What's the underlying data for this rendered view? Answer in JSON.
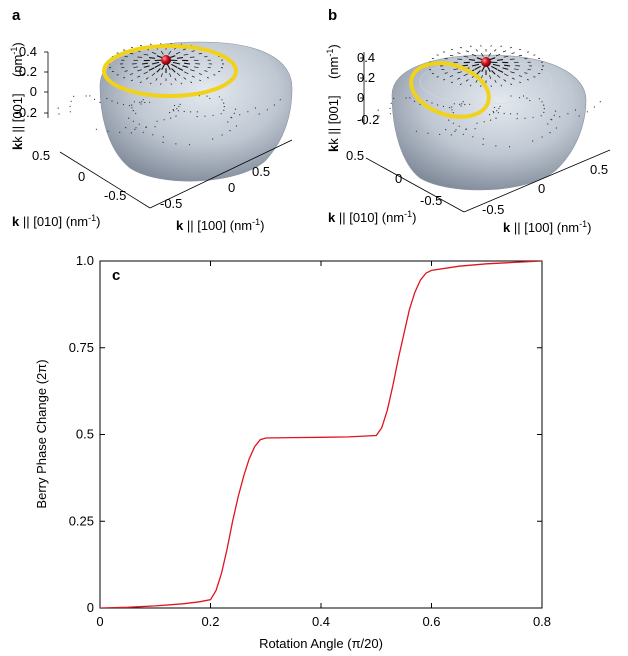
{
  "panels": {
    "a": {
      "letter": "a",
      "z_ticks": [
        "0.4",
        "0.2",
        "0",
        "-0.2"
      ],
      "y_ticks": [
        "0.5",
        "0",
        "-0.5"
      ],
      "x_ticks": [
        "-0.5",
        "0",
        "0.5"
      ],
      "z_label_prefix": "k || [001]",
      "z_label_unit": "(nm",
      "y_label_prefix": "k",
      "y_label_rest": " || [010]  (nm",
      "x_label_prefix": "k",
      "x_label_rest": " || [100]  (nm",
      "unit_sup": "-1",
      "unit_close": ")"
    },
    "b": {
      "letter": "b",
      "z_ticks": [
        "0.4",
        "0.2",
        "0",
        "-0.2"
      ],
      "y_ticks": [
        "0.5",
        "0",
        "-0.5"
      ],
      "x_ticks": [
        "-0.5",
        "0",
        "0.5"
      ],
      "z_label_prefix": "k || [001]",
      "z_label_unit": "(nm",
      "y_label_prefix": "k",
      "y_label_rest": " || [010]  (nm",
      "x_label_prefix": "k",
      "x_label_rest": " || [100]  (nm",
      "unit_sup": "-1",
      "unit_close": ")"
    }
  },
  "colors": {
    "surface": "#b9c1cc",
    "loop": "#f0d21a",
    "sphere": "#c8141e",
    "curve": "#e0141e",
    "arrows": "#111111"
  },
  "chart_data": {
    "type": "line",
    "panel_letter": "c",
    "xlabel": "Rotation Angle  (π/20)",
    "ylabel": "Berry Phase Change  (2π)",
    "xlim": [
      0,
      0.8
    ],
    "ylim": [
      0,
      1.0
    ],
    "x_tick_values": [
      0,
      0.2,
      0.4,
      0.6,
      0.8
    ],
    "x_tick_labels": [
      "0",
      "0.2",
      "0.4",
      "0.6",
      "0.8"
    ],
    "y_tick_values": [
      0,
      0.25,
      0.5,
      0.75,
      1.0
    ],
    "y_tick_labels": [
      "0",
      "0.25",
      "0.5",
      "0.75",
      "1.0"
    ],
    "grid": false,
    "series": [
      {
        "color": "#e0141e",
        "x": [
          0,
          0.05,
          0.1,
          0.15,
          0.18,
          0.2,
          0.21,
          0.22,
          0.23,
          0.24,
          0.25,
          0.26,
          0.27,
          0.28,
          0.29,
          0.3,
          0.35,
          0.4,
          0.45,
          0.5,
          0.51,
          0.52,
          0.53,
          0.54,
          0.55,
          0.56,
          0.57,
          0.58,
          0.59,
          0.6,
          0.65,
          0.7,
          0.75,
          0.8
        ],
        "y": [
          0,
          0.002,
          0.006,
          0.012,
          0.018,
          0.024,
          0.05,
          0.1,
          0.17,
          0.25,
          0.32,
          0.38,
          0.43,
          0.465,
          0.485,
          0.49,
          0.491,
          0.492,
          0.493,
          0.497,
          0.52,
          0.57,
          0.64,
          0.72,
          0.79,
          0.86,
          0.91,
          0.945,
          0.965,
          0.973,
          0.985,
          0.992,
          0.996,
          1.0
        ]
      }
    ]
  }
}
